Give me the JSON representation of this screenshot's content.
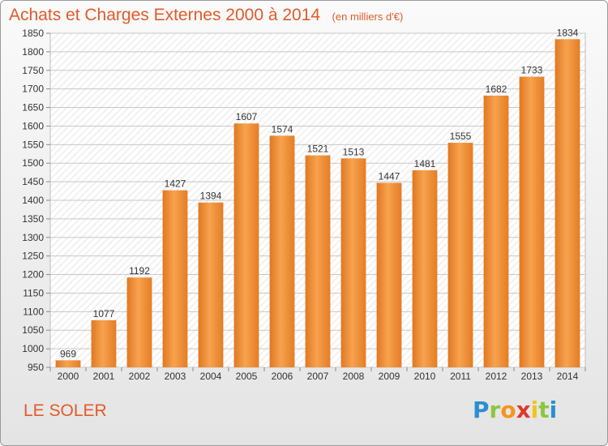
{
  "chart_data": {
    "type": "bar",
    "title": "Achats et Charges Externes 2000 à 2014",
    "subtitle": "(en milliers d'€)",
    "categories": [
      "2000",
      "2001",
      "2002",
      "2003",
      "2004",
      "2005",
      "2006",
      "2007",
      "2008",
      "2009",
      "2010",
      "2011",
      "2012",
      "2013",
      "2014"
    ],
    "values": [
      969,
      1077,
      1192,
      1427,
      1394,
      1607,
      1574,
      1521,
      1513,
      1447,
      1481,
      1555,
      1682,
      1733,
      1834
    ],
    "ylim": [
      950,
      1850
    ],
    "yticks": [
      950,
      1000,
      1050,
      1100,
      1150,
      1200,
      1250,
      1300,
      1350,
      1400,
      1450,
      1500,
      1550,
      1600,
      1650,
      1700,
      1750,
      1800,
      1850
    ],
    "grid": true,
    "bar_color": "#f08a35",
    "legend": "none"
  },
  "location": "LE SOLER",
  "brand": {
    "letters": [
      "P",
      "r",
      "o",
      "x",
      "i",
      "t",
      "i"
    ],
    "colors": [
      "#2a8fd1",
      "#8dc63f",
      "#f7941e",
      "#e0382d",
      "#f2c318",
      "#8dc63f",
      "#2a8fd1"
    ]
  },
  "colors": {
    "title": "#e25a2a",
    "bar": "#f08a35"
  }
}
